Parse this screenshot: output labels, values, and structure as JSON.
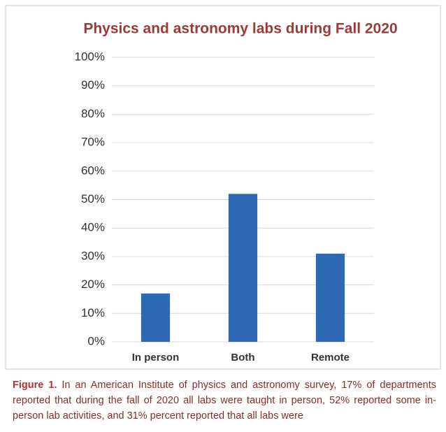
{
  "chart_data": {
    "type": "bar",
    "title": "Physics and astronomy labs during Fall 2020",
    "categories": [
      "In person",
      "Both",
      "Remote"
    ],
    "values": [
      17,
      52,
      31
    ],
    "color": "#2f69b3",
    "ylim": [
      0,
      100
    ],
    "yticks": [
      {
        "value": 0,
        "label": "0%"
      },
      {
        "value": 10,
        "label": "10%"
      },
      {
        "value": 20,
        "label": "20%"
      },
      {
        "value": 30,
        "label": "30%"
      },
      {
        "value": 40,
        "label": "40%"
      },
      {
        "value": 50,
        "label": "50%"
      },
      {
        "value": 60,
        "label": "60%"
      },
      {
        "value": 70,
        "label": "70%"
      },
      {
        "value": 80,
        "label": "80%"
      },
      {
        "value": 90,
        "label": "90%"
      },
      {
        "value": 100,
        "label": "100%"
      }
    ],
    "grid": true
  },
  "caption": {
    "label": "Figure 1.",
    "text": "In an American Institute of physics and astronomy survey, 17% of departments reported that during the fall of 2020 all labs were taught in person, 52% reported some in-person lab activities, and 31% percent reported that all labs were"
  }
}
